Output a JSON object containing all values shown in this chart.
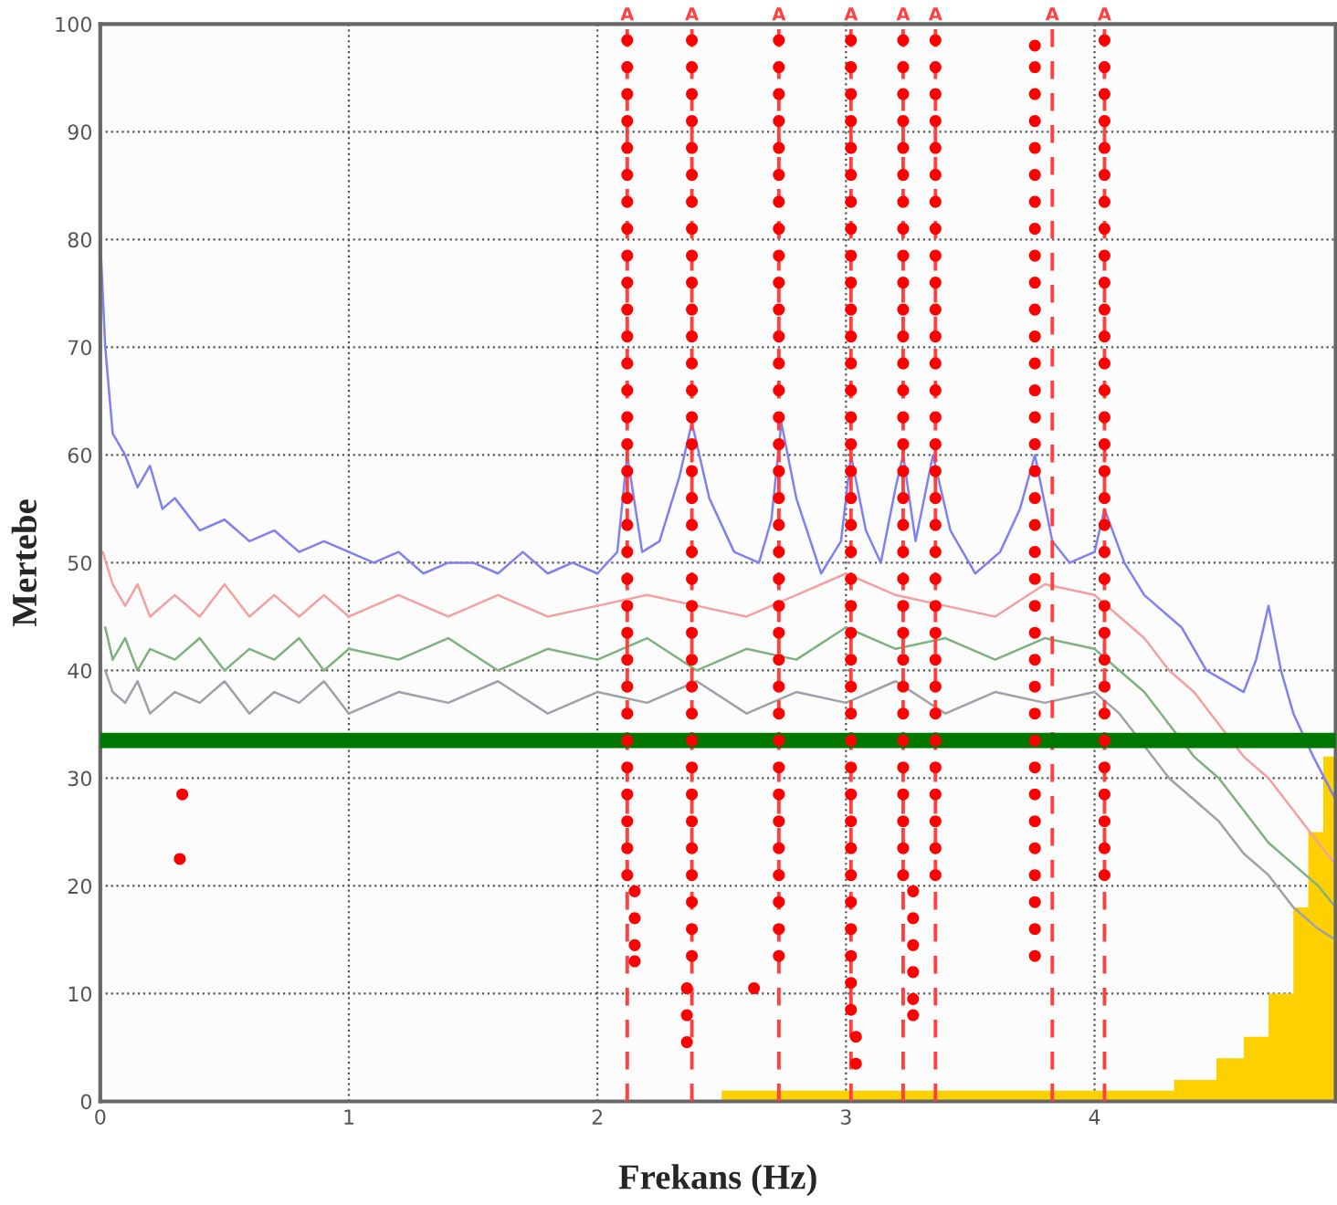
{
  "chart_data": {
    "type": "line",
    "xlabel": "Frekans (Hz)",
    "ylabel": "Mertebe",
    "xlim": [
      0,
      4.97
    ],
    "ylim": [
      0,
      100
    ],
    "xticks": [
      0,
      1,
      2,
      3,
      4
    ],
    "yticks": [
      0,
      10,
      20,
      30,
      40,
      50,
      60,
      70,
      80,
      90,
      100
    ],
    "grid": true,
    "series": [
      {
        "color": "#9fa0a8",
        "x": [
          0.02,
          0.05,
          0.1,
          0.15,
          0.2,
          0.3,
          0.4,
          0.5,
          0.6,
          0.7,
          0.8,
          0.9,
          1.0,
          1.2,
          1.4,
          1.6,
          1.8,
          2.0,
          2.2,
          2.4,
          2.6,
          2.8,
          3.0,
          3.2,
          3.4,
          3.6,
          3.8,
          4.0,
          4.1,
          4.2,
          4.3,
          4.4,
          4.5,
          4.6,
          4.7,
          4.8,
          4.9,
          4.97
        ],
        "values": [
          40,
          38,
          37,
          39,
          36,
          38,
          37,
          39,
          36,
          38,
          37,
          39,
          36,
          38,
          37,
          39,
          36,
          38,
          37,
          39,
          36,
          38,
          37,
          39,
          36,
          38,
          37,
          38,
          36,
          33,
          30,
          28,
          26,
          23,
          21,
          18,
          16,
          15
        ]
      },
      {
        "color": "#7fb07f",
        "x": [
          0.02,
          0.05,
          0.1,
          0.15,
          0.2,
          0.3,
          0.4,
          0.5,
          0.6,
          0.7,
          0.8,
          0.9,
          1.0,
          1.2,
          1.4,
          1.6,
          1.8,
          2.0,
          2.2,
          2.4,
          2.6,
          2.8,
          3.0,
          3.2,
          3.4,
          3.6,
          3.8,
          4.0,
          4.1,
          4.2,
          4.3,
          4.4,
          4.5,
          4.6,
          4.7,
          4.8,
          4.9,
          4.97
        ],
        "values": [
          44,
          41,
          43,
          40,
          42,
          41,
          43,
          40,
          42,
          41,
          43,
          40,
          42,
          41,
          43,
          40,
          42,
          41,
          43,
          40,
          42,
          41,
          44,
          42,
          43,
          41,
          43,
          42,
          40,
          38,
          35,
          32,
          30,
          27,
          24,
          22,
          20,
          18
        ]
      },
      {
        "color": "#f4a0a0",
        "x": [
          0.01,
          0.05,
          0.1,
          0.15,
          0.2,
          0.3,
          0.4,
          0.5,
          0.6,
          0.7,
          0.8,
          0.9,
          1.0,
          1.2,
          1.4,
          1.6,
          1.8,
          2.0,
          2.2,
          2.4,
          2.6,
          2.8,
          3.0,
          3.2,
          3.4,
          3.6,
          3.8,
          4.0,
          4.1,
          4.2,
          4.3,
          4.4,
          4.5,
          4.6,
          4.7,
          4.8,
          4.9,
          4.97
        ],
        "values": [
          51,
          48,
          46,
          48,
          45,
          47,
          45,
          48,
          45,
          47,
          45,
          47,
          45,
          47,
          45,
          47,
          45,
          46,
          47,
          46,
          45,
          47,
          49,
          47,
          46,
          45,
          48,
          47,
          45,
          43,
          40,
          38,
          35,
          32,
          30,
          27,
          24,
          22
        ]
      },
      {
        "color": "#8080f0",
        "x": [
          0.0,
          0.02,
          0.05,
          0.1,
          0.15,
          0.2,
          0.25,
          0.3,
          0.4,
          0.5,
          0.6,
          0.7,
          0.8,
          0.9,
          1.0,
          1.1,
          1.2,
          1.3,
          1.4,
          1.5,
          1.6,
          1.7,
          1.8,
          1.9,
          2.0,
          2.08,
          2.12,
          2.18,
          2.25,
          2.33,
          2.38,
          2.45,
          2.55,
          2.65,
          2.7,
          2.74,
          2.8,
          2.9,
          2.98,
          3.02,
          3.08,
          3.14,
          3.2,
          3.23,
          3.28,
          3.35,
          3.42,
          3.52,
          3.62,
          3.7,
          3.76,
          3.83,
          3.9,
          4.0,
          4.04,
          4.12,
          4.2,
          4.35,
          4.45,
          4.6,
          4.65,
          4.7,
          4.75,
          4.8,
          4.88,
          4.97
        ],
        "values": [
          80,
          70,
          62,
          60,
          57,
          59,
          55,
          56,
          53,
          54,
          52,
          53,
          51,
          52,
          51,
          50,
          51,
          49,
          50,
          50,
          49,
          51,
          49,
          50,
          49,
          51,
          60,
          51,
          52,
          58,
          63,
          56,
          51,
          50,
          54,
          63,
          56,
          49,
          52,
          60,
          53,
          50,
          57,
          60,
          52,
          60,
          53,
          49,
          51,
          55,
          60,
          52,
          50,
          51,
          55,
          50,
          47,
          44,
          40,
          38,
          41,
          46,
          40,
          36,
          32,
          28
        ]
      },
      {
        "type": "area",
        "color": "#ffd000",
        "x": [
          2.5,
          4.32,
          4.32,
          4.49,
          4.49,
          4.6,
          4.6,
          4.7,
          4.7,
          4.8,
          4.8,
          4.86,
          4.86,
          4.92,
          4.92,
          4.97
        ],
        "values": [
          1,
          1,
          2,
          2,
          4,
          4,
          6,
          6,
          10,
          10,
          18,
          18,
          25,
          25,
          32,
          32
        ]
      },
      {
        "type": "scatter",
        "color": "#ff0000",
        "x": [
          0.33,
          0.32,
          2.63
        ],
        "values": [
          28.5,
          22.5,
          10.5
        ]
      },
      {
        "type": "scatter",
        "color": "#ff0000",
        "x": [
          2.12,
          2.12,
          2.12,
          2.12,
          2.12,
          2.12,
          2.12,
          2.12,
          2.12,
          2.12,
          2.12,
          2.12,
          2.12,
          2.12,
          2.12,
          2.12,
          2.12,
          2.12,
          2.12,
          2.12,
          2.12,
          2.12,
          2.12,
          2.12,
          2.12,
          2.12,
          2.12,
          2.12,
          2.12,
          2.12,
          2.12,
          2.12,
          2.15,
          2.15,
          2.15,
          2.15
        ],
        "values": [
          98.5,
          96,
          93.5,
          91,
          88.5,
          86,
          83.5,
          81,
          78.5,
          76,
          73.5,
          71,
          68.5,
          66,
          63.5,
          61,
          58.5,
          56,
          53.5,
          51,
          48.5,
          46,
          43.5,
          41,
          38.5,
          36,
          33.5,
          31,
          28.5,
          26,
          23.5,
          21,
          19.5,
          17,
          14.5,
          13
        ]
      },
      {
        "type": "scatter",
        "color": "#ff0000",
        "x": [
          2.38,
          2.38,
          2.38,
          2.38,
          2.38,
          2.38,
          2.38,
          2.38,
          2.38,
          2.38,
          2.38,
          2.38,
          2.38,
          2.38,
          2.38,
          2.38,
          2.38,
          2.38,
          2.38,
          2.38,
          2.38,
          2.38,
          2.38,
          2.38,
          2.38,
          2.38,
          2.38,
          2.38,
          2.38,
          2.38,
          2.38,
          2.38,
          2.38,
          2.38,
          2.38,
          2.36,
          2.36,
          2.36
        ],
        "values": [
          98.5,
          96,
          93.5,
          91,
          88.5,
          86,
          83.5,
          81,
          78.5,
          76,
          73.5,
          71,
          68.5,
          66,
          63.5,
          61,
          58.5,
          56,
          53.5,
          51,
          48.5,
          46,
          43.5,
          41,
          38.5,
          36,
          33.5,
          31,
          28.5,
          26,
          23.5,
          21,
          18.5,
          16,
          13.5,
          10.5,
          8,
          5.5
        ]
      },
      {
        "type": "scatter",
        "color": "#ff0000",
        "x": [
          2.73,
          2.73,
          2.73,
          2.73,
          2.73,
          2.73,
          2.73,
          2.73,
          2.73,
          2.73,
          2.73,
          2.73,
          2.73,
          2.73,
          2.73,
          2.73,
          2.73,
          2.73,
          2.73,
          2.73,
          2.73,
          2.73,
          2.73,
          2.73,
          2.73,
          2.73,
          2.73,
          2.73,
          2.73,
          2.73,
          2.73,
          2.73,
          2.73,
          2.73,
          2.73
        ],
        "values": [
          98.5,
          96,
          93.5,
          91,
          88.5,
          86,
          83.5,
          81,
          78.5,
          76,
          73.5,
          71,
          68.5,
          66,
          63.5,
          61,
          58.5,
          56,
          53.5,
          51,
          48.5,
          46,
          43.5,
          41,
          38.5,
          36,
          33.5,
          31,
          28.5,
          26,
          23.5,
          21,
          18.5,
          16,
          13.5
        ]
      },
      {
        "type": "scatter",
        "color": "#ff0000",
        "x": [
          3.02,
          3.02,
          3.02,
          3.02,
          3.02,
          3.02,
          3.02,
          3.02,
          3.02,
          3.02,
          3.02,
          3.02,
          3.02,
          3.02,
          3.02,
          3.02,
          3.02,
          3.02,
          3.02,
          3.02,
          3.02,
          3.02,
          3.02,
          3.02,
          3.02,
          3.02,
          3.02,
          3.02,
          3.02,
          3.02,
          3.02,
          3.02,
          3.02,
          3.02,
          3.02,
          3.02,
          3.02,
          3.04,
          3.04
        ],
        "values": [
          98.5,
          96,
          93.5,
          91,
          88.5,
          86,
          83.5,
          81,
          78.5,
          76,
          73.5,
          71,
          68.5,
          66,
          63.5,
          61,
          58.5,
          56,
          53.5,
          51,
          48.5,
          46,
          43.5,
          41,
          38.5,
          36,
          33.5,
          31,
          28.5,
          26,
          23.5,
          21,
          18.5,
          16,
          13.5,
          11,
          8.5,
          6,
          3.5
        ]
      },
      {
        "type": "scatter",
        "color": "#ff0000",
        "x": [
          3.23,
          3.23,
          3.23,
          3.23,
          3.23,
          3.23,
          3.23,
          3.23,
          3.23,
          3.23,
          3.23,
          3.23,
          3.23,
          3.23,
          3.23,
          3.23,
          3.23,
          3.23,
          3.23,
          3.23,
          3.23,
          3.23,
          3.23,
          3.23,
          3.23,
          3.23,
          3.23,
          3.23,
          3.23,
          3.23,
          3.23,
          3.23,
          3.27,
          3.27,
          3.27,
          3.27,
          3.27,
          3.27
        ],
        "values": [
          98.5,
          96,
          93.5,
          91,
          88.5,
          86,
          83.5,
          81,
          78.5,
          76,
          73.5,
          71,
          68.5,
          66,
          63.5,
          61,
          58.5,
          56,
          53.5,
          51,
          48.5,
          46,
          43.5,
          41,
          38.5,
          36,
          33.5,
          31,
          28.5,
          26,
          23.5,
          21,
          19.5,
          17,
          14.5,
          12,
          9.5,
          8
        ]
      },
      {
        "type": "scatter",
        "color": "#ff0000",
        "x": [
          3.36,
          3.36,
          3.36,
          3.36,
          3.36,
          3.36,
          3.36,
          3.36,
          3.36,
          3.36,
          3.36,
          3.36,
          3.36,
          3.36,
          3.36,
          3.36,
          3.36,
          3.36,
          3.36,
          3.36,
          3.36,
          3.36,
          3.36,
          3.36,
          3.36,
          3.36,
          3.36,
          3.36,
          3.36,
          3.36,
          3.36,
          3.36
        ],
        "values": [
          98.5,
          96,
          93.5,
          91,
          88.5,
          86,
          83.5,
          81,
          78.5,
          76,
          73.5,
          71,
          68.5,
          66,
          63.5,
          61,
          58.5,
          56,
          53.5,
          51,
          48.5,
          46,
          43.5,
          41,
          38.5,
          36,
          33.5,
          31,
          28.5,
          26,
          23.5,
          21
        ]
      },
      {
        "type": "scatter",
        "color": "#ff0000",
        "x": [
          3.76,
          3.76,
          3.76,
          3.76,
          3.76,
          3.76,
          3.76,
          3.76,
          3.76,
          3.76,
          3.76,
          3.76,
          3.76,
          3.76,
          3.76,
          3.76,
          3.76,
          3.76,
          3.76,
          3.76,
          3.76,
          3.76,
          3.76,
          3.76,
          3.76,
          3.76,
          3.76,
          3.76,
          3.76,
          3.76,
          3.76,
          3.76,
          3.76,
          3.76,
          3.76
        ],
        "values": [
          98,
          96,
          93.5,
          91,
          88.5,
          86,
          83.5,
          81,
          78.5,
          76,
          73.5,
          71,
          68.5,
          66,
          63.5,
          61,
          58.5,
          56,
          53.5,
          51,
          48.5,
          46,
          43.5,
          41,
          38.5,
          36,
          33.5,
          31,
          28.5,
          26,
          23.5,
          21,
          18.5,
          16,
          13.5
        ]
      },
      {
        "type": "scatter",
        "color": "#ff0000",
        "x": [
          4.04,
          4.04,
          4.04,
          4.04,
          4.04,
          4.04,
          4.04,
          4.04,
          4.04,
          4.04,
          4.04,
          4.04,
          4.04,
          4.04,
          4.04,
          4.04,
          4.04,
          4.04,
          4.04,
          4.04,
          4.04,
          4.04,
          4.04,
          4.04,
          4.04,
          4.04,
          4.04,
          4.04,
          4.04,
          4.04,
          4.04,
          4.04
        ],
        "values": [
          98.5,
          96,
          93.5,
          91,
          88.5,
          86,
          83.5,
          81,
          78.5,
          76,
          73.5,
          71,
          68.5,
          66,
          63.5,
          61,
          58.5,
          56,
          53.5,
          51,
          48.5,
          46,
          43.5,
          41,
          38.5,
          36,
          33.5,
          31,
          28.5,
          26,
          23.5,
          21
        ]
      }
    ],
    "ref_lines": [
      {
        "axis": "y",
        "value": 33.5,
        "color": "#007700",
        "line_style": "solid"
      },
      {
        "axis": "x",
        "value": 2.12,
        "label": "A",
        "color": "#ff4040",
        "line_style": "dashed"
      },
      {
        "axis": "x",
        "value": 2.38,
        "label": "A",
        "color": "#ff4040",
        "line_style": "dashed"
      },
      {
        "axis": "x",
        "value": 2.73,
        "label": "A",
        "color": "#ff4040",
        "line_style": "dashed"
      },
      {
        "axis": "x",
        "value": 3.02,
        "label": "A",
        "color": "#ff4040",
        "line_style": "dashed"
      },
      {
        "axis": "x",
        "value": 3.23,
        "label": "A",
        "color": "#ff4040",
        "line_style": "dashed"
      },
      {
        "axis": "x",
        "value": 3.36,
        "label": "A",
        "color": "#ff4040",
        "line_style": "dashed"
      },
      {
        "axis": "x",
        "value": 3.83,
        "label": "A",
        "color": "#ff4040",
        "line_style": "dashed"
      },
      {
        "axis": "x",
        "value": 4.04,
        "label": "A",
        "color": "#ff4040",
        "line_style": "dashed"
      }
    ]
  }
}
